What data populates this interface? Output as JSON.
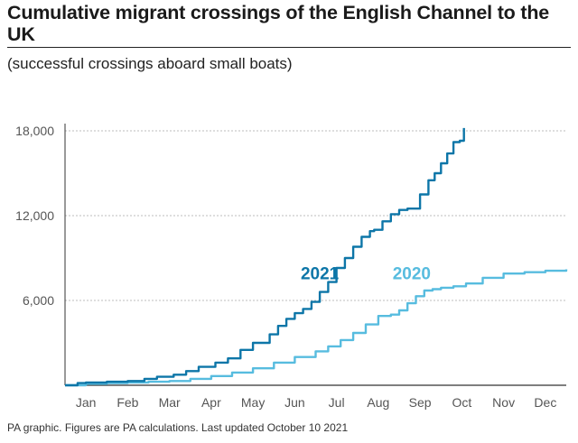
{
  "title": "Cumulative migrant crossings of the English Channel to the UK",
  "subtitle": "(successful crossings aboard small boats)",
  "footer": "PA graphic. Figures are PA calculations. Last updated October 10 2021",
  "colors": {
    "series_2021": "#0d76a8",
    "series_2020": "#57bcdf",
    "grid": "#bdbdbd",
    "axis": "#333333"
  },
  "chart_data": {
    "type": "line",
    "title": "Cumulative migrant crossings of the English Channel to the UK",
    "subtitle": "(successful crossings aboard small boats)",
    "xlabel": "",
    "ylabel": "",
    "x_unit": "month (0 = 1 Jan, 12 = 31 Dec)",
    "categories": [
      "Jan",
      "Feb",
      "Mar",
      "Apr",
      "May",
      "Jun",
      "Jul",
      "Aug",
      "Sep",
      "Oct",
      "Nov",
      "Dec"
    ],
    "ylim": [
      0,
      18000
    ],
    "xlim": [
      0,
      12
    ],
    "yticks": [
      6000,
      12000,
      18000
    ],
    "ytick_labels": [
      "6,000",
      "12,000",
      "18,000"
    ],
    "grid": true,
    "series": [
      {
        "name": "2021",
        "label": "2021",
        "x": [
          0,
          0.3,
          0.5,
          1.0,
          1.5,
          1.9,
          2.2,
          2.6,
          2.9,
          3.2,
          3.6,
          3.9,
          4.2,
          4.5,
          4.9,
          5.1,
          5.3,
          5.5,
          5.7,
          5.9,
          6.1,
          6.3,
          6.5,
          6.7,
          6.9,
          7.1,
          7.3,
          7.4,
          7.6,
          7.8,
          8.0,
          8.2,
          8.5,
          8.7,
          8.85,
          9.0,
          9.15,
          9.3,
          9.45,
          9.55
        ],
        "y": [
          0,
          150,
          200,
          250,
          300,
          450,
          600,
          750,
          1000,
          1300,
          1600,
          1900,
          2500,
          3000,
          3600,
          4200,
          4700,
          5100,
          5400,
          5900,
          6600,
          7300,
          8300,
          9000,
          9800,
          10500,
          10900,
          11000,
          11600,
          12100,
          12400,
          12500,
          13500,
          14500,
          15000,
          15700,
          16400,
          17200,
          17300,
          18200
        ]
      },
      {
        "name": "2020",
        "label": "2020",
        "x": [
          0,
          0.5,
          1.0,
          1.5,
          2.0,
          2.5,
          3.0,
          3.5,
          4.0,
          4.5,
          5.0,
          5.5,
          6.0,
          6.3,
          6.6,
          6.9,
          7.2,
          7.5,
          7.8,
          8.0,
          8.2,
          8.4,
          8.6,
          8.8,
          9.0,
          9.3,
          9.6,
          10.0,
          10.5,
          11.0,
          11.5,
          12.0
        ],
        "y": [
          0,
          100,
          150,
          200,
          250,
          300,
          450,
          650,
          900,
          1200,
          1600,
          2000,
          2400,
          2750,
          3200,
          3700,
          4300,
          4900,
          5000,
          5300,
          5800,
          6300,
          6700,
          6800,
          6900,
          7000,
          7200,
          7600,
          7900,
          8000,
          8100,
          8200
        ]
      }
    ]
  }
}
